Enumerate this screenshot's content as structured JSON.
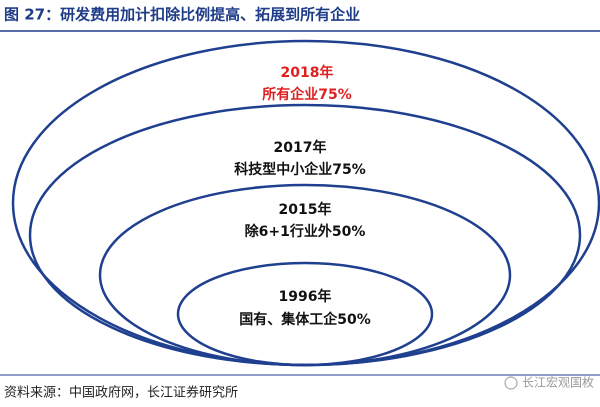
{
  "header": {
    "title": "图 27：研发费用加计扣除比例提高、拓展到所有企业"
  },
  "nodes": [
    {
      "year": "2018年",
      "label": "所有企业75%"
    },
    {
      "year": "2017年",
      "label": "科技型中小企业75%"
    },
    {
      "year": "2015年",
      "label": "除6+1行业外50%"
    },
    {
      "year": "1996年",
      "label": "国有、集体工企50%"
    }
  ],
  "footer": {
    "source": "资料来源：中国政府网，长江证券研究所",
    "watermark": "长江宏观国枚"
  }
}
